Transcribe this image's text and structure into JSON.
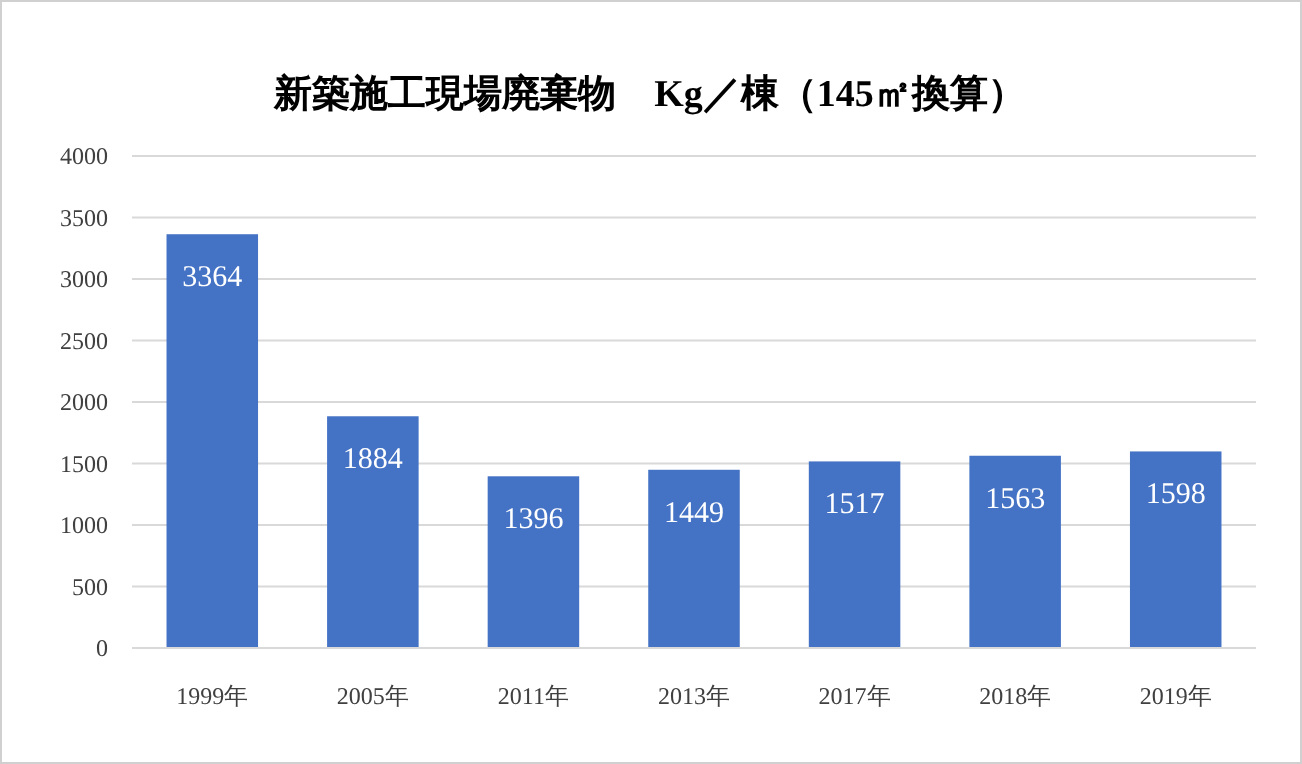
{
  "chart_data": {
    "type": "bar",
    "title": "新築施工現場廃棄物　Kg／棟（145㎡換算）",
    "categories": [
      "1999年",
      "2005年",
      "2011年",
      "2013年",
      "2017年",
      "2018年",
      "2019年"
    ],
    "values": [
      3364,
      1884,
      1396,
      1449,
      1517,
      1563,
      1598
    ],
    "color": "#4472c4",
    "ylim": [
      0,
      4000
    ],
    "yticks": [
      0,
      500,
      1000,
      1500,
      2000,
      2500,
      3000,
      3500,
      4000
    ],
    "grid": "y",
    "data_labels": true
  }
}
